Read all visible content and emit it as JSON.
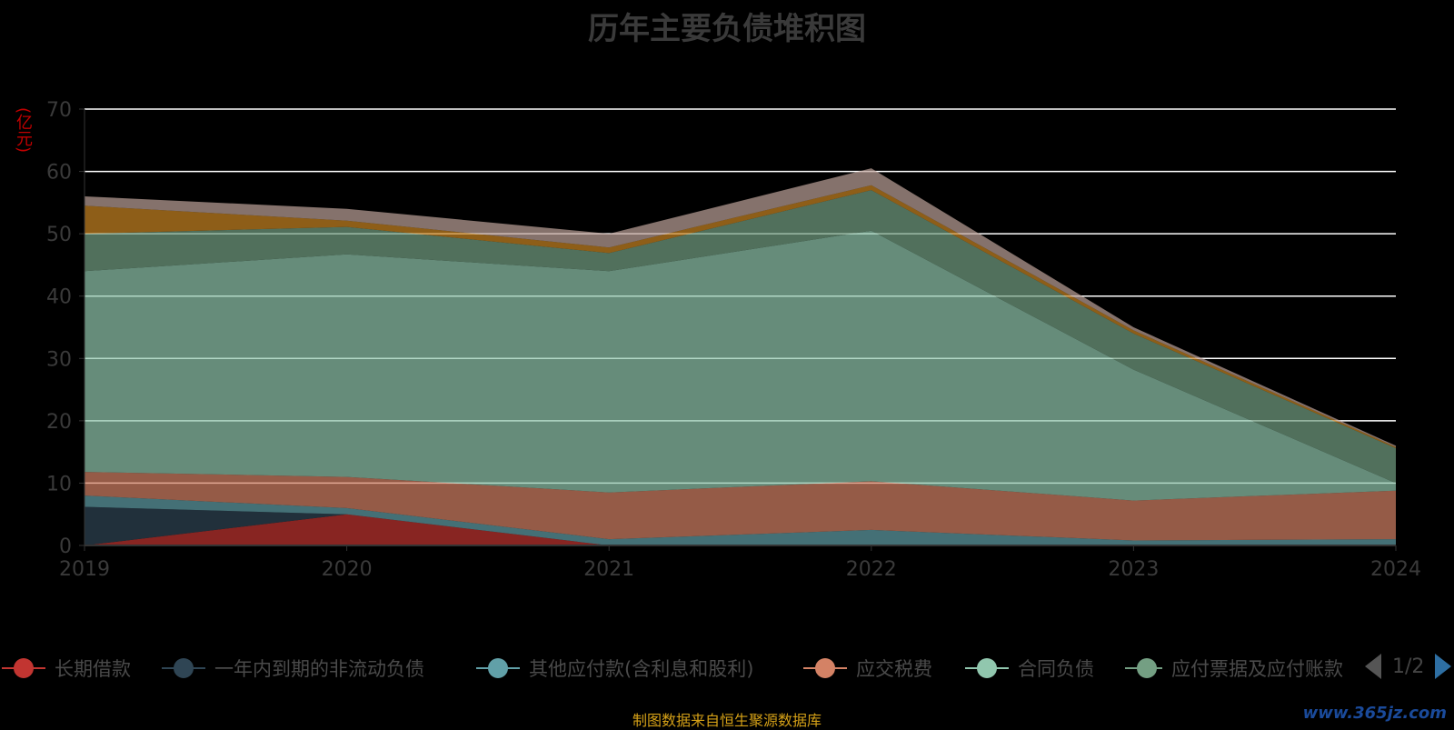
{
  "title": "历年主要负债堆积图",
  "source": "制图数据来自恒生聚源数据库",
  "watermark": "www.365jz.com",
  "colors": {
    "background": "#000000",
    "grid": "#ffffff",
    "axis_text": "#3a3a3a",
    "unit_text": "#c00000",
    "source_text": "#d4a017"
  },
  "legend": {
    "pager_text": "1/2",
    "items": [
      {
        "label": "长期借款",
        "color": "#c23531"
      },
      {
        "label": "一年内到期的非流动负债",
        "color": "#2f4554"
      },
      {
        "label": "其他应付款(含利息和股利)",
        "color": "#61a0a8"
      },
      {
        "label": "应交税费",
        "color": "#d48265"
      },
      {
        "label": "合同负债",
        "color": "#91c7ae"
      },
      {
        "label": "应付票据及应付账款",
        "color": "#749f83"
      }
    ]
  },
  "chart_data": {
    "type": "area",
    "stacked": true,
    "title": "历年主要负债堆积图",
    "ylabel": "(亿元)",
    "x": [
      "2019",
      "2020",
      "2021",
      "2022",
      "2023",
      "2024"
    ],
    "ylim": [
      0,
      70
    ],
    "yticks": [
      0,
      10,
      20,
      30,
      40,
      50,
      60,
      70
    ],
    "grid": true,
    "legend_position": "bottom",
    "series": [
      {
        "name": "长期借款",
        "color": "#c23531",
        "values": [
          0,
          5,
          0,
          0,
          0,
          0
        ]
      },
      {
        "name": "一年内到期的非流动负债",
        "color": "#2f4554",
        "values": [
          6.2,
          0,
          0,
          0,
          0,
          0
        ]
      },
      {
        "name": "其他应付款(含利息和股利)",
        "color": "#61a0a8",
        "values": [
          1.8,
          1.0,
          1.0,
          2.5,
          0.8,
          1.0
        ]
      },
      {
        "name": "应交税费",
        "color": "#d48265",
        "values": [
          3.8,
          5.0,
          7.5,
          7.8,
          6.4,
          7.8
        ]
      },
      {
        "name": "合同负债",
        "color": "#91c7ae",
        "values": [
          32.2,
          35.7,
          35.5,
          40.2,
          21.0,
          1.2
        ]
      },
      {
        "name": "应付票据及应付账款",
        "color": "#749f83",
        "values": [
          6.0,
          4.4,
          2.9,
          6.5,
          5.8,
          5.6
        ]
      },
      {
        "name": "",
        "color": "#ca8622",
        "values": [
          4.5,
          1.0,
          0.9,
          0.8,
          0.5,
          0.2
        ]
      },
      {
        "name": "",
        "color": "#bda29a",
        "values": [
          1.5,
          1.9,
          2.2,
          2.7,
          0.5,
          0.2
        ]
      }
    ]
  }
}
